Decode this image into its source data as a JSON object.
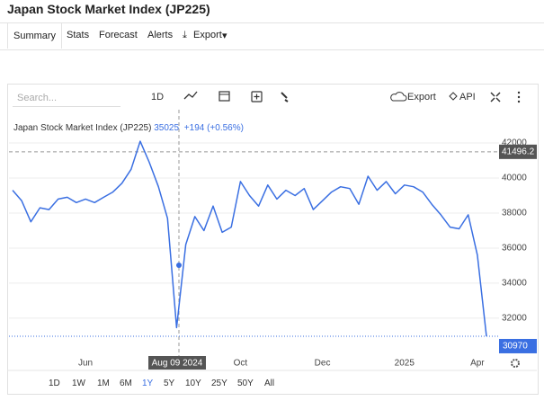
{
  "header": {
    "title": "Japan Stock Market Index (JP225)"
  },
  "tabs": [
    "Summary",
    "Stats",
    "Forecast",
    "Alerts",
    "Export"
  ],
  "toolbar": {
    "search_placeholder": "Search...",
    "interval": "1D",
    "export": "Export",
    "api": "API"
  },
  "chart_data": {
    "type": "line",
    "series": [
      {
        "name": "Japan Stock Market Index (JP225)",
        "color": "#3a6fe2",
        "values": [
          39300,
          38700,
          37500,
          38300,
          38200,
          38800,
          38900,
          38600,
          38800,
          38600,
          38900,
          39200,
          39700,
          40500,
          42100,
          40900,
          39500,
          37700,
          31460,
          36200,
          37800,
          37000,
          38400,
          36900,
          37200,
          39800,
          39000,
          38400,
          39600,
          38800,
          39300,
          39000,
          39400,
          38200,
          38700,
          39200,
          39500,
          39400,
          38500,
          40100,
          39300,
          39800,
          39100,
          39600,
          39500,
          39200,
          38500,
          37900,
          37200,
          37100,
          37900,
          35600,
          30970
        ]
      }
    ],
    "categories": [
      null,
      null,
      null,
      null,
      null,
      null,
      null,
      null,
      "Jun",
      null,
      null,
      null,
      null,
      null,
      null,
      null,
      null,
      null,
      null,
      null,
      null,
      null,
      null,
      null,
      null,
      "Oct",
      null,
      null,
      null,
      null,
      null,
      null,
      null,
      null,
      "Dec",
      null,
      null,
      null,
      null,
      null,
      null,
      null,
      null,
      "2025",
      null,
      null,
      null,
      null,
      null,
      null,
      null,
      "Apr",
      null
    ],
    "ylim": [
      30250,
      42550
    ],
    "yticks": [
      32000,
      34000,
      36000,
      38000,
      40000,
      42000
    ],
    "grid": true,
    "hover": {
      "date": "Aug 09 2024",
      "value": 35025,
      "change": "+194 (+0.56%)"
    },
    "crosshair_value": 41496.2,
    "last_value": 30970
  },
  "range_buttons": [
    "1D",
    "1W",
    "1M",
    "6M",
    "1Y",
    "5Y",
    "10Y",
    "25Y",
    "50Y",
    "All"
  ],
  "active_range_index": 4
}
